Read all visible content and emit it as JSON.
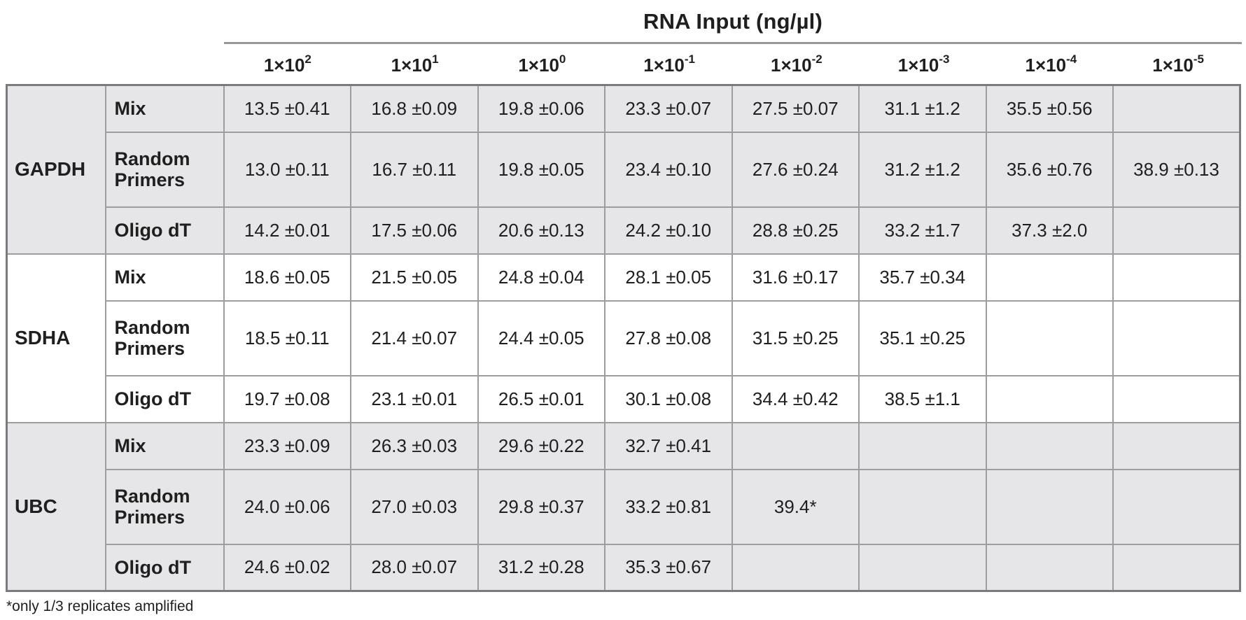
{
  "header": {
    "title": "RNA Input (ng/µl)",
    "columns": [
      {
        "base": "1×10",
        "exp": "2"
      },
      {
        "base": "1×10",
        "exp": "1"
      },
      {
        "base": "1×10",
        "exp": "0"
      },
      {
        "base": "1×10",
        "exp": "-1"
      },
      {
        "base": "1×10",
        "exp": "-2"
      },
      {
        "base": "1×10",
        "exp": "-3"
      },
      {
        "base": "1×10",
        "exp": "-4"
      },
      {
        "base": "1×10",
        "exp": "-5"
      }
    ]
  },
  "table": {
    "groups": [
      {
        "gene": "GAPDH",
        "shaded": true,
        "rows": [
          {
            "primer": "Mix",
            "cells": [
              "13.5 ±0.41",
              "16.8 ±0.09",
              "19.8 ±0.06",
              "23.3 ±0.07",
              "27.5 ±0.07",
              "31.1 ±1.2",
              "35.5 ±0.56",
              ""
            ]
          },
          {
            "primer": "Random Primers",
            "cells": [
              "13.0 ±0.11",
              "16.7 ±0.11",
              "19.8 ±0.05",
              "23.4 ±0.10",
              "27.6 ±0.24",
              "31.2 ±1.2",
              "35.6 ±0.76",
              "38.9 ±0.13"
            ]
          },
          {
            "primer": "Oligo dT",
            "cells": [
              "14.2 ±0.01",
              "17.5 ±0.06",
              "20.6 ±0.13",
              "24.2 ±0.10",
              "28.8 ±0.25",
              "33.2 ±1.7",
              "37.3 ±2.0",
              ""
            ]
          }
        ]
      },
      {
        "gene": "SDHA",
        "shaded": false,
        "rows": [
          {
            "primer": "Mix",
            "cells": [
              "18.6 ±0.05",
              "21.5 ±0.05",
              "24.8 ±0.04",
              "28.1 ±0.05",
              "31.6 ±0.17",
              "35.7 ±0.34",
              "",
              ""
            ]
          },
          {
            "primer": "Random Primers",
            "cells": [
              "18.5 ±0.11",
              "21.4 ±0.07",
              "24.4 ±0.05",
              "27.8 ±0.08",
              "31.5 ±0.25",
              "35.1 ±0.25",
              "",
              ""
            ]
          },
          {
            "primer": "Oligo dT",
            "cells": [
              "19.7 ±0.08",
              "23.1 ±0.01",
              "26.5 ±0.01",
              "30.1 ±0.08",
              "34.4 ±0.42",
              "38.5 ±1.1",
              "",
              ""
            ]
          }
        ]
      },
      {
        "gene": "UBC",
        "shaded": true,
        "rows": [
          {
            "primer": "Mix",
            "cells": [
              "23.3 ±0.09",
              "26.3 ±0.03",
              "29.6 ±0.22",
              "32.7 ±0.41",
              "",
              "",
              "",
              ""
            ]
          },
          {
            "primer": "Random Primers",
            "cells": [
              "24.0 ±0.06",
              "27.0 ±0.03",
              "29.8 ±0.37",
              "33.2 ±0.81",
              "39.4*",
              "",
              "",
              ""
            ]
          },
          {
            "primer": "Oligo dT",
            "cells": [
              "24.6 ±0.02",
              "28.0 ±0.07",
              "31.2 ±0.28",
              "35.3 ±0.67",
              "",
              "",
              "",
              ""
            ]
          }
        ]
      }
    ]
  },
  "footnote": "*only 1/3 replicates amplified",
  "colors": {
    "shaded_row": "#e6e6e8",
    "border_inner": "#9d9da0",
    "border_outer": "#7b7b7f",
    "text": "#1f1f1f",
    "background": "#ffffff"
  }
}
